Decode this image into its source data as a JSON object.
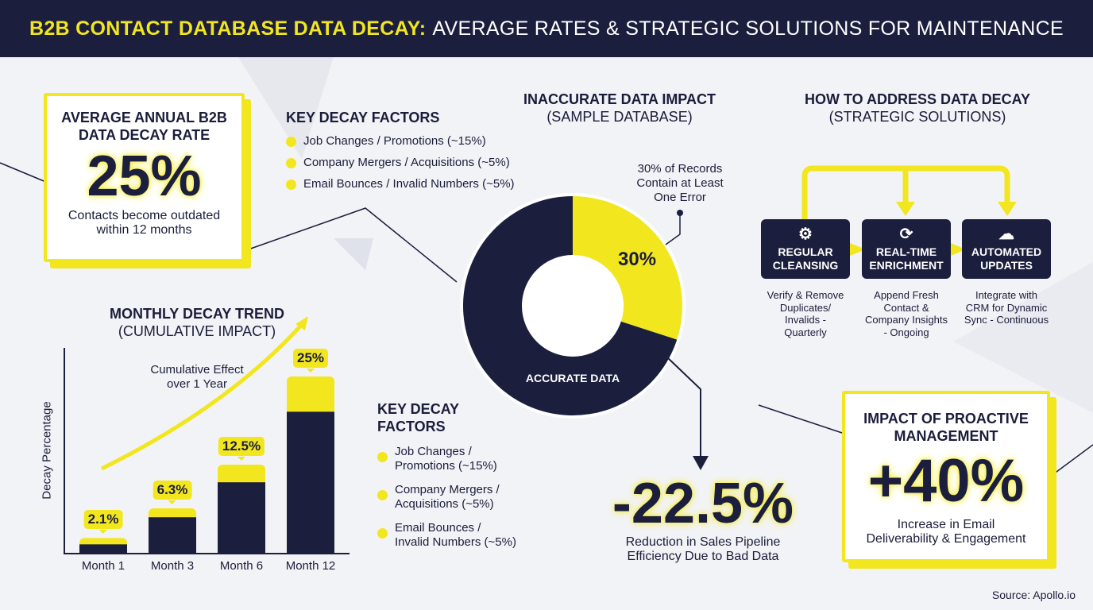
{
  "header": {
    "title_highlight": "B2B CONTACT DATABASE DATA DECAY:",
    "title_rest": "AVERAGE RATES & STRATEGIC SOLUTIONS FOR MAINTENANCE"
  },
  "annual_card": {
    "title_1": "AVERAGE ANNUAL B2B",
    "title_2": "DATA DECAY RATE",
    "value": "25%",
    "caption_1": "Contacts become outdated",
    "caption_2": "within 12 months"
  },
  "factors_top": {
    "title": "KEY DECAY FACTORS",
    "items": [
      "Job Changes / Promotions (~15%)",
      "Company Mergers / Acquisitions (~5%)",
      "Email Bounces / Invalid Numbers (~5%)"
    ]
  },
  "trend": {
    "title": "MONTHLY DECAY TREND",
    "subtitle": "(CUMULATIVE IMPACT)",
    "annotation_1": "Cumulative Effect",
    "annotation_2": "over 1 Year"
  },
  "factors_bottom": {
    "title_1": "KEY DECAY",
    "title_2": "FACTORS",
    "items": [
      [
        "Job Changes /",
        "Promotions (~15%)"
      ],
      [
        "Company Mergers /",
        "Acquisitions (~5%)"
      ],
      [
        "Email Bounces /",
        "Invalid Numbers (~5%)"
      ]
    ]
  },
  "impact": {
    "title": "INACCURATE DATA IMPACT",
    "subtitle": "(SAMPLE DATABASE)",
    "callout_1": "30% of Records",
    "callout_2": "Contain at Least",
    "callout_3": "One Error",
    "big": "-22.5%",
    "caption_1": "Reduction in Sales Pipeline",
    "caption_2": "Efficiency Due to Bad Data"
  },
  "solutions": {
    "title": "HOW TO ADDRESS DATA DECAY",
    "subtitle": "(STRATEGIC SOLUTIONS)",
    "steps": [
      {
        "icon": "gears-icon",
        "glyph": "⚙",
        "l1": "REGULAR",
        "l2": "CLEANSING",
        "d": [
          "Verify & Remove",
          "Duplicates/",
          "Invalids -",
          "Quarterly"
        ]
      },
      {
        "icon": "refresh-icon",
        "glyph": "⟳",
        "l1": "REAL-TIME",
        "l2": "ENRICHMENT",
        "d": [
          "Append Fresh",
          "Contact &",
          "Company Insights",
          "- Ongoing"
        ]
      },
      {
        "icon": "cloud-upload-icon",
        "glyph": "☁",
        "l1": "AUTOMATED",
        "l2": "UPDATES",
        "d": [
          "Integrate with",
          "CRM for Dynamic",
          "Sync - Continuous"
        ]
      }
    ]
  },
  "proactive": {
    "title_1": "IMPACT OF PROACTIVE",
    "title_2": "MANAGEMENT",
    "value": "+40%",
    "caption_1": "Increase in Email",
    "caption_2": "Deliverability & Engagement"
  },
  "source": "Source: Apollo.io",
  "colors": {
    "navy": "#1b1e3d",
    "yellow": "#f2e61f",
    "background": "#f2f3f6"
  },
  "chart_data": [
    {
      "type": "bar",
      "title": "MONTHLY DECAY TREND",
      "ylabel": "Decay Percentage",
      "categories": [
        "Month 1",
        "Month 3",
        "Month 6",
        "Month 12"
      ],
      "values": [
        2.1,
        6.3,
        12.5,
        25
      ],
      "data_labels": [
        "2.1%",
        "6.3%",
        "12.5%",
        "25%"
      ],
      "ylim": [
        0,
        25
      ],
      "grid": false
    },
    {
      "type": "pie",
      "variant": "donut",
      "slices": [
        {
          "label": "30%",
          "value": 30,
          "color": "#f2e61f"
        },
        {
          "label": "ACCURATE DATA",
          "value": 70,
          "color": "#1b1e3d"
        }
      ]
    }
  ]
}
